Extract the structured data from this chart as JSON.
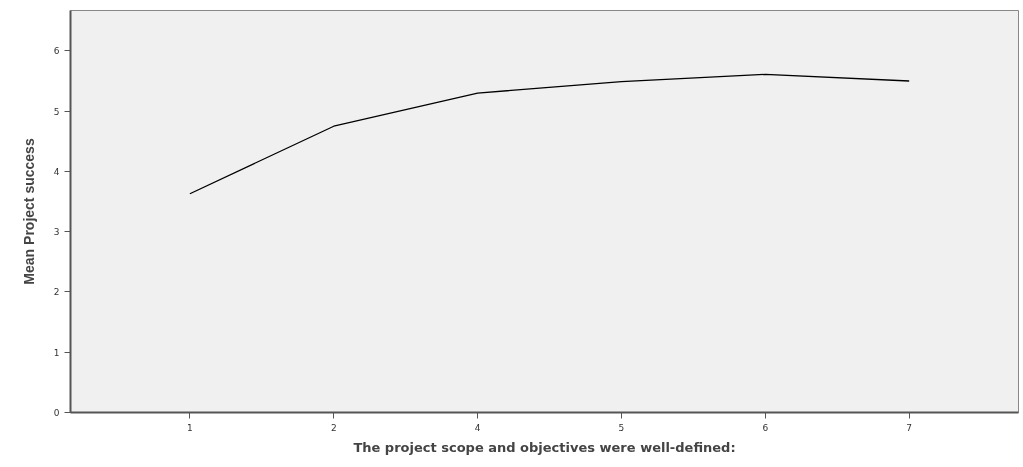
{
  "chart_data": {
    "type": "line",
    "xlabel": "The project scope and objectives were well-defined:",
    "ylabel": "Mean Project success",
    "categories": [
      "1",
      "2",
      "4",
      "5",
      "6",
      "7"
    ],
    "series": [
      {
        "color": "#000000",
        "values": [
          3.63,
          4.75,
          5.3,
          5.49,
          5.61,
          5.5
        ]
      }
    ],
    "ylim": [
      0,
      6.67
    ],
    "yticks": [
      0,
      1,
      2,
      3,
      4,
      5,
      6
    ],
    "grid": false,
    "marker": "none",
    "line_style": "solid"
  }
}
